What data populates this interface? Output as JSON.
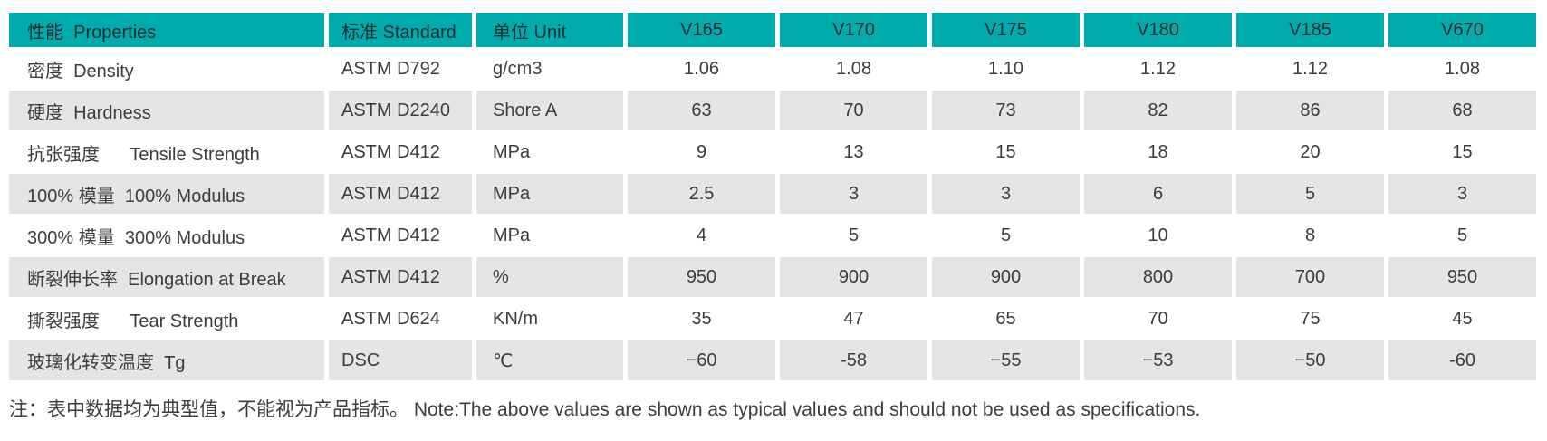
{
  "table": {
    "header": {
      "property": "性能  Properties",
      "standard": "标准 Standard",
      "unit": "单位 Unit",
      "grades": [
        "V165",
        "V170",
        "V175",
        "V180",
        "V185",
        "V670"
      ]
    },
    "rows": [
      {
        "property": "密度  Density",
        "standard": "ASTM D792",
        "unit": "g/cm3",
        "values": [
          "1.06",
          "1.08",
          "1.10",
          "1.12",
          "1.12",
          "1.08"
        ]
      },
      {
        "property": "硬度  Hardness",
        "standard": "ASTM D2240",
        "unit": "Shore A",
        "values": [
          "63",
          "70",
          "73",
          "82",
          "86",
          "68"
        ]
      },
      {
        "property": "抗张强度      Tensile Strength",
        "standard": "ASTM D412",
        "unit": "MPa",
        "values": [
          "9",
          "13",
          "15",
          "18",
          "20",
          "15"
        ]
      },
      {
        "property": "100% 模量  100% Modulus",
        "standard": "ASTM D412",
        "unit": "MPa",
        "values": [
          "2.5",
          "3",
          "3",
          "6",
          "5",
          "3"
        ]
      },
      {
        "property": "300% 模量  300% Modulus",
        "standard": "ASTM D412",
        "unit": "MPa",
        "values": [
          "4",
          "5",
          "5",
          "10",
          "8",
          "5"
        ]
      },
      {
        "property": "断裂伸长率  Elongation at Break",
        "standard": "ASTM D412",
        "unit": "%",
        "values": [
          "950",
          "900",
          "900",
          "800",
          "700",
          "950"
        ]
      },
      {
        "property": "撕裂强度      Tear Strength",
        "standard": "ASTM D624",
        "unit": "KN/m",
        "values": [
          "35",
          "47",
          "65",
          "70",
          "75",
          "45"
        ]
      },
      {
        "property": "玻璃化转变温度  Tg",
        "standard": "DSC",
        "unit": "℃",
        "values": [
          "−60",
          "-58",
          "−55",
          "−53",
          "−50",
          "-60"
        ]
      }
    ]
  },
  "note": "注：表中数据均为典型值，不能视为产品指标。 Note:The above values are shown as typical values and should not be used as specifications.",
  "colors": {
    "header_bg": "#00abad",
    "header_text": "#1d2b2b",
    "row_even_bg": "#ffffff",
    "row_odd_bg": "#e5e5e7",
    "body_text": "#3c3c3e",
    "page_bg": "#ffffff"
  }
}
